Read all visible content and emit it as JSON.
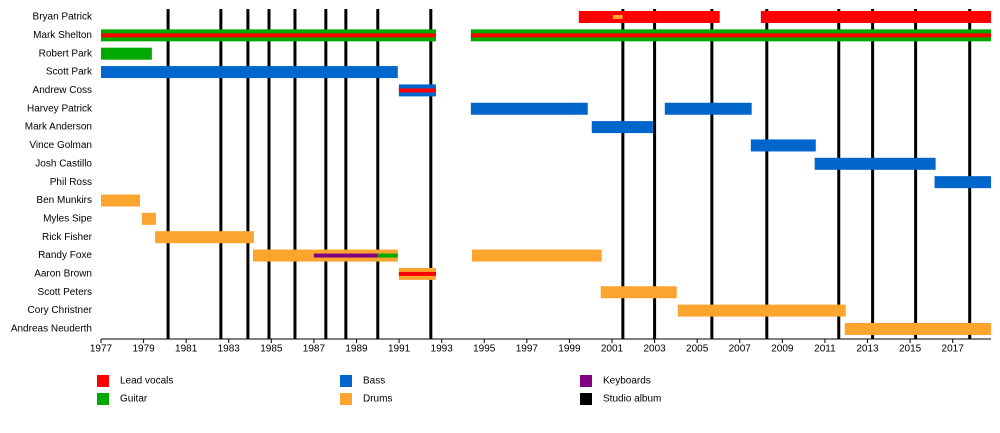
{
  "chart_data": {
    "type": "timeline",
    "xlim": [
      1977,
      2018.8
    ],
    "xticks": [
      1977,
      1979,
      1981,
      1983,
      1985,
      1987,
      1989,
      1991,
      1993,
      1995,
      1997,
      1999,
      2001,
      2003,
      2005,
      2007,
      2009,
      2011,
      2013,
      2015,
      2017
    ],
    "legend": [
      {
        "name": "Lead vocals",
        "color": "#ff0000"
      },
      {
        "name": "Guitar",
        "color": "#00a800"
      },
      {
        "name": "Bass",
        "color": "#0066cc"
      },
      {
        "name": "Drums",
        "color": "#fba42e"
      },
      {
        "name": "Keyboards",
        "color": "#800080"
      },
      {
        "name": "Studio album",
        "color": "#000000"
      }
    ],
    "albums": [
      1980.15,
      1982.63,
      1983.9,
      1984.89,
      1986.11,
      1987.56,
      1988.5,
      1990.0,
      1992.49,
      2001.51,
      2003.0,
      2005.69,
      2008.27,
      2011.65,
      2013.24,
      2015.26,
      2017.8
    ],
    "members": [
      {
        "name": "Bryan Patrick",
        "bars": [
          {
            "start": 1999.44,
            "end": 2006.06,
            "role": 0,
            "stripes": [
              {
                "start": 2001.04,
                "end": 2001.5,
                "role": 3
              }
            ]
          },
          {
            "start": 2007.99,
            "end": 2018.8,
            "role": 0
          }
        ]
      },
      {
        "name": "Mark Shelton",
        "bars": [
          {
            "start": 1977,
            "end": 1992.73,
            "role": 1,
            "stripes": [
              {
                "start": 1977,
                "end": 1992.73,
                "role": 0
              }
            ]
          },
          {
            "start": 1994.37,
            "end": 2018.8,
            "role": 1,
            "stripes": [
              {
                "start": 1994.37,
                "end": 2018.8,
                "role": 0
              }
            ]
          }
        ]
      },
      {
        "name": "Robert Park",
        "bars": [
          {
            "start": 1977,
            "end": 1979.39,
            "role": 1
          }
        ]
      },
      {
        "name": "Scott Park",
        "bars": [
          {
            "start": 1977,
            "end": 1990.94,
            "role": 2
          }
        ]
      },
      {
        "name": "Andrew Coss",
        "bars": [
          {
            "start": 1990.99,
            "end": 1992.73,
            "role": 2,
            "stripes": [
              {
                "start": 1990.99,
                "end": 1992.73,
                "role": 0
              }
            ]
          }
        ]
      },
      {
        "name": "Harvey Patrick",
        "bars": [
          {
            "start": 1994.37,
            "end": 1999.86,
            "role": 2
          },
          {
            "start": 2003.48,
            "end": 2007.56,
            "role": 2
          }
        ]
      },
      {
        "name": "Mark Anderson",
        "bars": [
          {
            "start": 2000.05,
            "end": 2002.92,
            "role": 2
          }
        ]
      },
      {
        "name": "Vince Golman",
        "bars": [
          {
            "start": 2007.52,
            "end": 2010.57,
            "role": 2
          }
        ]
      },
      {
        "name": "Josh Castillo",
        "bars": [
          {
            "start": 2010.52,
            "end": 2016.2,
            "role": 2
          }
        ]
      },
      {
        "name": "Phil Ross",
        "bars": [
          {
            "start": 2016.15,
            "end": 2018.8,
            "role": 2
          }
        ]
      },
      {
        "name": "Ben Munkirs",
        "bars": [
          {
            "start": 1977,
            "end": 1978.83,
            "role": 3
          }
        ]
      },
      {
        "name": "Myles Sipe",
        "bars": [
          {
            "start": 1978.92,
            "end": 1979.58,
            "role": 3
          }
        ]
      },
      {
        "name": "Rick Fisher",
        "bars": [
          {
            "start": 1979.54,
            "end": 1984.18,
            "role": 3
          }
        ]
      },
      {
        "name": "Randy Foxe",
        "bars": [
          {
            "start": 1984.14,
            "end": 1990.94,
            "role": 3,
            "stripes": [
              {
                "start": 1987.0,
                "end": 1990.0,
                "role": 4
              },
              {
                "start": 1990.0,
                "end": 1990.94,
                "role": 1
              }
            ]
          },
          {
            "start": 1994.42,
            "end": 2000.52,
            "role": 3
          }
        ]
      },
      {
        "name": "Aaron Brown",
        "bars": [
          {
            "start": 1990.99,
            "end": 1992.73,
            "role": 3,
            "stripes": [
              {
                "start": 1990.99,
                "end": 1992.73,
                "role": 0
              }
            ]
          }
        ]
      },
      {
        "name": "Scott Peters",
        "bars": [
          {
            "start": 2000.47,
            "end": 2004.04,
            "role": 3
          }
        ]
      },
      {
        "name": "Cory Christner",
        "bars": [
          {
            "start": 2004.09,
            "end": 2011.98,
            "role": 3
          }
        ]
      },
      {
        "name": "Andreas Neuderth",
        "bars": [
          {
            "start": 2011.93,
            "end": 2018.8,
            "role": 3
          }
        ]
      }
    ]
  }
}
